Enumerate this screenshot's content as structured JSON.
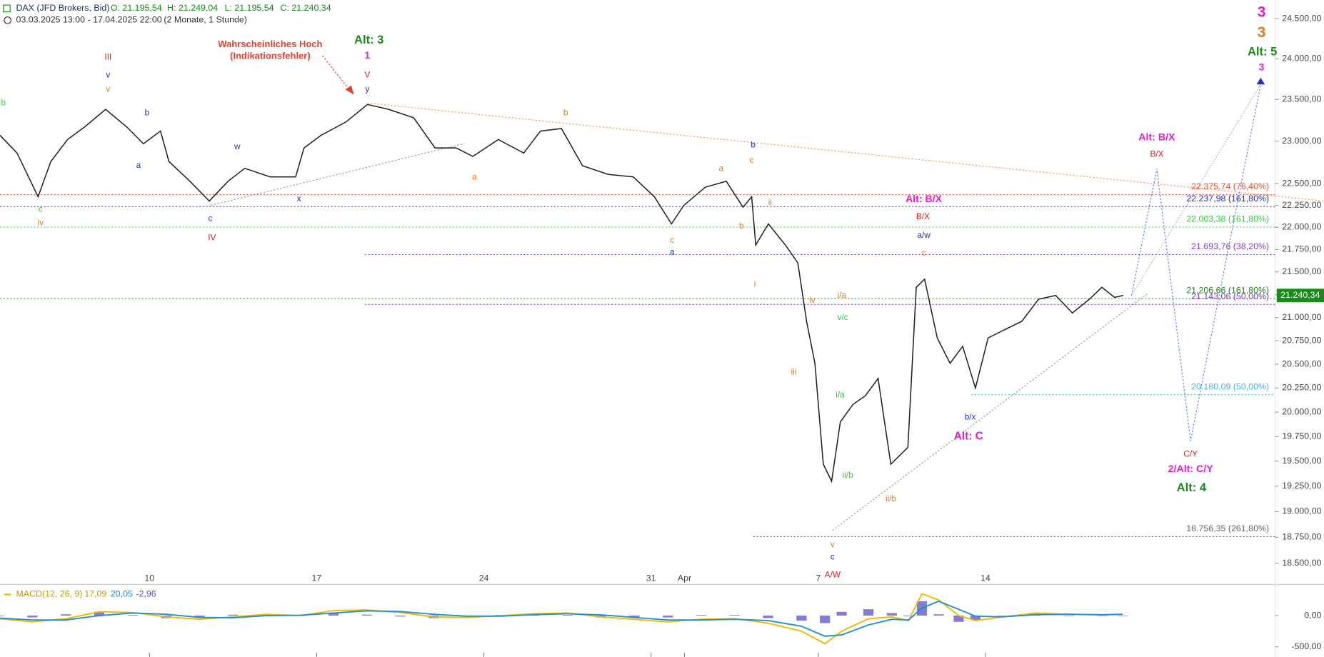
{
  "header": {
    "symbol": "DAX (JFD Brokers, Bid)",
    "quote": [
      "O: 21.195,54",
      "H: 21.249,04",
      "L: 21.195,54",
      "C: 21.240,34"
    ],
    "range": "03.03.2025 13:00 - 17.04.2025 22:00",
    "period": "(2 Monate, 1 Stunde)"
  },
  "chart_data": [
    {
      "type": "line",
      "log": true,
      "color": "#222222",
      "x": [
        0.53,
        1.04,
        1.67,
        2.05,
        2.55,
        3.06,
        3.69,
        4.32,
        4.82,
        5.33,
        5.58,
        6.21,
        6.79,
        7.35,
        7.85,
        8.61,
        9.37,
        9.62,
        10.13,
        10.88,
        11.52,
        12.15,
        12.9,
        13.54,
        14.17,
        14.67,
        15.43,
        16.19,
        16.69,
        17.32,
        17.95,
        18.71,
        19.47,
        20.1,
        20.61,
        20.98,
        21.62,
        22.25,
        22.75,
        23.01,
        23.13,
        23.51,
        24.02,
        24.39,
        24.65,
        24.9,
        25.15,
        25.4,
        25.66,
        26.04,
        26.41,
        26.79,
        27.17,
        27.68,
        27.93,
        28.18,
        28.56,
        28.94,
        29.32,
        29.7,
        30.08,
        30.58,
        31.09,
        31.59,
        32.1,
        32.6,
        33.11,
        33.48,
        33.86,
        34.12
      ],
      "values": [
        23070,
        22860,
        22350,
        22760,
        23020,
        23170,
        23380,
        23170,
        22970,
        23120,
        22760,
        22530,
        22300,
        22530,
        22680,
        22580,
        22580,
        22920,
        23070,
        23230,
        23440,
        23380,
        23280,
        22920,
        22920,
        22820,
        23020,
        22860,
        23120,
        23150,
        22710,
        22610,
        22580,
        22350,
        22040,
        22250,
        22460,
        22530,
        22230,
        22350,
        21800,
        22040,
        21800,
        21600,
        20960,
        20510,
        19470,
        19300,
        19900,
        20080,
        20170,
        20350,
        19470,
        19640,
        21330,
        21420,
        20780,
        20510,
        20690,
        20250,
        20780,
        20870,
        20960,
        21200,
        21240,
        21050,
        21200,
        21330,
        21220,
        21240.34
      ],
      "xlim": [
        0.53,
        38.66
      ],
      "ylim": [
        18316,
        24737
      ],
      "xticks": [
        {
          "value": 5,
          "label": "10"
        },
        {
          "value": 10,
          "label": "17"
        },
        {
          "value": 15,
          "label": "24"
        },
        {
          "value": 20,
          "label": "31"
        },
        {
          "value": 21,
          "label": "Apr"
        },
        {
          "value": 25,
          "label": "7"
        },
        {
          "value": 30,
          "label": "14"
        }
      ],
      "yticks": [
        {
          "value": 24500,
          "label": "24.500,00"
        },
        {
          "value": 24000,
          "label": "24.000,00"
        },
        {
          "value": 23500,
          "label": "23.500,00"
        },
        {
          "value": 23000,
          "label": "23.000,00"
        },
        {
          "value": 22500,
          "label": "22.500,00"
        },
        {
          "value": 22250,
          "label": "22.250,00"
        },
        {
          "value": 22000,
          "label": "22.000,00"
        },
        {
          "value": 21750,
          "label": "21.750,00"
        },
        {
          "value": 21500,
          "label": "21.500,00"
        },
        {
          "value": 21250,
          "label": "21.250,00"
        },
        {
          "value": 21000,
          "label": "21.000,00"
        },
        {
          "value": 20750,
          "label": "20.750,00"
        },
        {
          "value": 20500,
          "label": "20.500,00"
        },
        {
          "value": 20250,
          "label": "20.250,00"
        },
        {
          "value": 20000,
          "label": "20.000,00"
        },
        {
          "value": 19750,
          "label": "19.750,00"
        },
        {
          "value": 19500,
          "label": "19.500,00"
        },
        {
          "value": 19250,
          "label": "19.250,00"
        },
        {
          "value": 19000,
          "label": "19.000,00"
        },
        {
          "value": 18750,
          "label": "18.750,00"
        },
        {
          "value": 18500,
          "label": "18.500,00"
        }
      ],
      "last_price": {
        "value": 21240.34,
        "label": "21.240,34",
        "color": "#1a8a1a"
      },
      "levels": [
        {
          "value": 22375.74,
          "label": "22.375,74 (76,40%)",
          "color": "#e05030"
        },
        {
          "value": 22237.98,
          "label": "22.237,98 (161,80%)",
          "color": "#2030c8"
        },
        {
          "value": 22003.38,
          "label": "22.003,38 (161,80%)",
          "color": "#2ecc40"
        },
        {
          "value": 21693.76,
          "label": "21.693,76 (38,20%)",
          "color": "#8040c0"
        },
        {
          "value": 21206.66,
          "label": "21.206,66 (161,80%)",
          "color": "#1a8a1a"
        },
        {
          "value": 21143.06,
          "label": "21.143,06 (50,00%)",
          "color": "#8040c0"
        },
        {
          "value": 20180.09,
          "label": "20.180,09 (50,00%)",
          "color": "#40b8e8"
        },
        {
          "value": 18756.35,
          "label": "18.756,35 (261,80%)",
          "color": "#666666"
        }
      ],
      "annotations": [
        {
          "text": "b",
          "color": "#2ecc40"
        },
        {
          "text": "c",
          "color": "#2ecc40"
        },
        {
          "text": "iv",
          "color": "#e07a20"
        },
        {
          "text": "III",
          "color": "#d42020"
        },
        {
          "text": "v",
          "color": "#2030c8"
        },
        {
          "text": "v",
          "color": "#e07a20"
        },
        {
          "text": "b",
          "color": "#2030c8"
        },
        {
          "text": "a",
          "color": "#2030c8"
        },
        {
          "text": "c",
          "color": "#2030c8"
        },
        {
          "text": "IV",
          "color": "#d42020"
        },
        {
          "text": "w",
          "color": "#2030c8"
        },
        {
          "text": "x",
          "color": "#2030c8"
        },
        {
          "text": "Wahrscheinliches Hoch",
          "color": "#e04030"
        },
        {
          "text": "(Indikationsfehler)",
          "color": "#e04030"
        },
        {
          "text": "Alt: 3",
          "color": "#1a8a1a"
        },
        {
          "text": "1",
          "color": "#e020c8"
        },
        {
          "text": "V",
          "color": "#d42020"
        },
        {
          "text": "y",
          "color": "#2030c8"
        },
        {
          "text": "b",
          "color": "#e07a20"
        },
        {
          "text": "a",
          "color": "#e07a20"
        },
        {
          "text": "c",
          "color": "#e07a20"
        },
        {
          "text": "a",
          "color": "#2030c8"
        },
        {
          "text": "a",
          "color": "#e07a20"
        },
        {
          "text": "b",
          "color": "#2030c8"
        },
        {
          "text": "c",
          "color": "#e07a20"
        },
        {
          "text": "b",
          "color": "#e07a20"
        },
        {
          "text": "ii",
          "color": "#e07a20"
        },
        {
          "text": "i",
          "color": "#e07a20"
        },
        {
          "text": "iv",
          "color": "#e07a20"
        },
        {
          "text": "iii",
          "color": "#e07a20"
        },
        {
          "text": "i/a",
          "color": "#e07a20"
        },
        {
          "text": "v/c",
          "color": "#2ecc40"
        },
        {
          "text": "i/a",
          "color": "#2ecc40"
        },
        {
          "text": "ii/b",
          "color": "#2ecc40"
        },
        {
          "text": "ii/b",
          "color": "#e07a20"
        },
        {
          "text": "v",
          "color": "#e07a20"
        },
        {
          "text": "c",
          "color": "#2030c8"
        },
        {
          "text": "A/W",
          "color": "#d42020"
        },
        {
          "text": "Alt: B/X",
          "color": "#e020c8"
        },
        {
          "text": "B/X",
          "color": "#d42020"
        },
        {
          "text": "a/w",
          "color": "#2030c8"
        },
        {
          "text": "c",
          "color": "#e07a20"
        },
        {
          "text": "b/x",
          "color": "#2030c8"
        },
        {
          "text": "Alt: C",
          "color": "#e020c8"
        },
        {
          "text": "Alt: B/X",
          "color": "#e020c8"
        },
        {
          "text": "B/X",
          "color": "#d42020"
        },
        {
          "text": "C/Y",
          "color": "#d42020"
        },
        {
          "text": "2/Alt: C/Y",
          "color": "#e020c8"
        },
        {
          "text": "Alt: 4",
          "color": "#1a8a1a"
        },
        {
          "text": "3",
          "color": "#e020c8"
        },
        {
          "text": "3",
          "color": "#e07a20"
        },
        {
          "text": "Alt: 5",
          "color": "#1a8a1a"
        },
        {
          "text": "3",
          "color": "#e020c8"
        }
      ]
    },
    {
      "type": "macd",
      "title": "MACD(12, 26, 9)",
      "x": [
        0.5,
        1.5,
        2.5,
        3.5,
        4.5,
        5.5,
        6.5,
        7.5,
        8.5,
        9.5,
        10.5,
        11.5,
        12.5,
        13.5,
        14.5,
        15.5,
        16.5,
        17.5,
        18.5,
        19.5,
        20.5,
        21.5,
        22.5,
        23.5,
        24.5,
        25.2,
        25.7,
        26.5,
        27.2,
        27.7,
        28.1,
        28.6,
        29.2,
        29.7,
        30.5,
        31.5,
        32.5,
        33.5,
        34.1
      ],
      "series": [
        {
          "name": "MACD",
          "color": "#f0b800",
          "values": [
            -50,
            -100,
            -50,
            60,
            50,
            -20,
            -60,
            -20,
            20,
            0,
            80,
            90,
            50,
            -20,
            -30,
            0,
            30,
            40,
            -20,
            -60,
            -100,
            -60,
            -50,
            -120,
            -250,
            -450,
            -250,
            -50,
            -20,
            -80,
            350,
            250,
            0,
            -80,
            -20,
            40,
            20,
            10,
            17.09
          ]
        },
        {
          "name": "Signal",
          "color": "#2090d0",
          "values": [
            -40,
            -70,
            -70,
            0,
            40,
            20,
            -30,
            -35,
            0,
            5,
            40,
            75,
            65,
            20,
            -10,
            -10,
            15,
            30,
            10,
            -30,
            -70,
            -70,
            -60,
            -80,
            -170,
            -330,
            -310,
            -150,
            -60,
            -70,
            120,
            230,
            100,
            -10,
            -20,
            15,
            20,
            15,
            20.05
          ]
        },
        {
          "name": "Histogram",
          "color": "#5a50c8",
          "values": [
            -10,
            -30,
            20,
            60,
            10,
            -40,
            -30,
            15,
            20,
            -5,
            40,
            15,
            -15,
            -40,
            -20,
            10,
            15,
            10,
            -30,
            -30,
            -30,
            10,
            10,
            -40,
            -80,
            -120,
            60,
            100,
            40,
            -10,
            230,
            20,
            -100,
            -70,
            0,
            25,
            0,
            -5,
            -2.96
          ]
        }
      ],
      "readout": [
        {
          "value": 17.09,
          "label": "17,09"
        },
        {
          "value": 20.05,
          "label": "20,05"
        },
        {
          "value": -2.96,
          "label": "-2,96"
        }
      ],
      "xlim": [
        0.53,
        38.66
      ],
      "ylim": [
        -662,
        459
      ],
      "yticks": [
        {
          "value": 0,
          "label": "0,00"
        },
        {
          "value": -500,
          "label": "-500,00"
        }
      ]
    }
  ]
}
